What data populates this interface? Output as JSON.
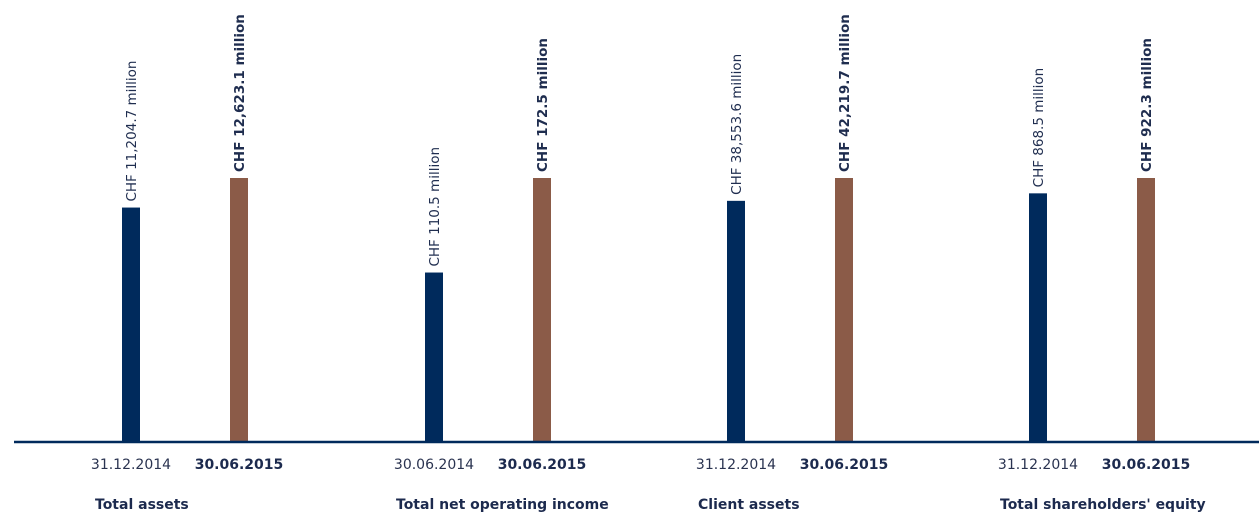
{
  "chart_data": {
    "type": "bar",
    "colors": {
      "prior": "#002a5c",
      "current": "#8b5b48",
      "baseline": "#002a5c"
    },
    "groups": [
      {
        "category": "Total assets",
        "bars": [
          {
            "date": "31.12.2014",
            "value": 11204.7,
            "label": "CHF 11,204.7 million"
          },
          {
            "date": "30.06.2015",
            "value": 12623.1,
            "label": "CHF 12,623.1 million"
          }
        ]
      },
      {
        "category": "Total net operating income",
        "bars": [
          {
            "date": "30.06.2014",
            "value": 110.5,
            "label": "CHF 110.5 million"
          },
          {
            "date": "30.06.2015",
            "value": 172.5,
            "label": "CHF 172.5 million"
          }
        ]
      },
      {
        "category": "Client assets",
        "bars": [
          {
            "date": "31.12.2014",
            "value": 38553.6,
            "label": "CHF 38,553.6 million"
          },
          {
            "date": "30.06.2015",
            "value": 42219.7,
            "label": "CHF 42,219.7 million"
          }
        ]
      },
      {
        "category": "Total shareholders' equity",
        "bars": [
          {
            "date": "31.12.2014",
            "value": 868.5,
            "label": "CHF 868.5 million"
          },
          {
            "date": "30.06.2015",
            "value": 922.3,
            "label": "CHF 922.3 million"
          }
        ]
      }
    ]
  }
}
